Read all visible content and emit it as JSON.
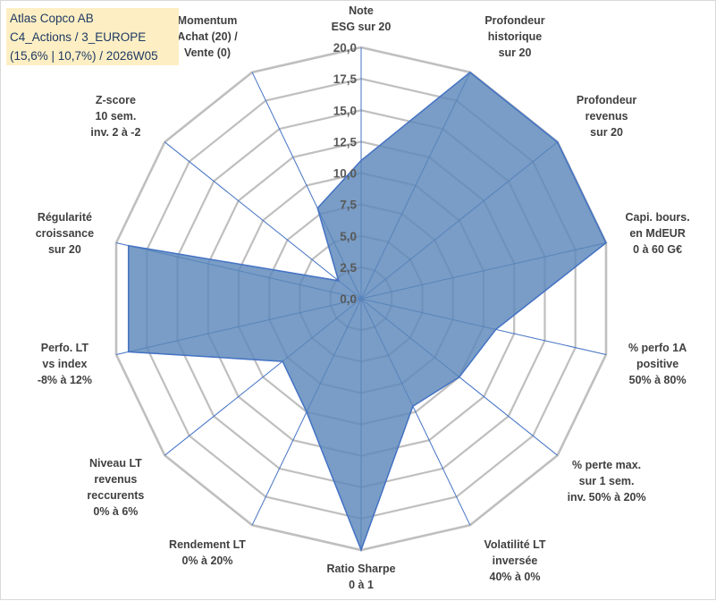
{
  "info": {
    "company": "Atlas Copco AB",
    "portfolio": "C4_Actions / 3_EUROPE",
    "stats": "(15,6% | 10,7%) / 2026W05"
  },
  "colors": {
    "fill": "#5b87b9",
    "stroke": "#4472c4",
    "grid": "#bfbfbf",
    "spoke": "#4472c4",
    "info_bg": "#fdefc3"
  },
  "chart_data": {
    "type": "radar",
    "title": "Atlas Copco AB",
    "rmin": 0,
    "rmax": 20,
    "tick_labels": [
      "0,0",
      "2,5",
      "5,0",
      "7,5",
      "10,0",
      "12,5",
      "15,0",
      "17,5",
      "20,0"
    ],
    "tick_values": [
      0,
      2.5,
      5,
      7.5,
      10,
      12.5,
      15,
      17.5,
      20
    ],
    "axes": [
      {
        "label": [
          "Note",
          "ESG sur 20"
        ],
        "value": 11.0
      },
      {
        "label": [
          "Profondeur",
          "historique",
          "sur 20"
        ],
        "value": 20.0
      },
      {
        "label": [
          "Profondeur",
          "revenus",
          "sur 20"
        ],
        "value": 20.0
      },
      {
        "label": [
          "Capi. bours.",
          "en MdEUR",
          "0 à 60 G€"
        ],
        "value": 20.0
      },
      {
        "label": [
          "% perfo 1A",
          "positive",
          "50% à 80%"
        ],
        "value": 11.0
      },
      {
        "label": [
          "% perte max.",
          "sur 1 sem.",
          "inv. 50% à 20%"
        ],
        "value": 10.0
      },
      {
        "label": [
          "Volatilité LT",
          "inversée",
          "40% à 0%"
        ],
        "value": 9.5
      },
      {
        "label": [
          "Ratio Sharpe",
          "0 à 1"
        ],
        "value": 20.0
      },
      {
        "label": [
          "Rendement LT",
          "0% à 20%"
        ],
        "value": 10.0
      },
      {
        "label": [
          "Niveau LT",
          "revenus",
          "reccurents",
          "0% à 6%"
        ],
        "value": 8.0
      },
      {
        "label": [
          "Perfo. LT",
          "vs index",
          "-8% à 12%"
        ],
        "value": 19.0
      },
      {
        "label": [
          "Régularité",
          "croissance",
          "sur 20"
        ],
        "value": 19.0
      },
      {
        "label": [
          "Z-score",
          "10 sem.",
          "inv. 2 à -2"
        ],
        "value": 2.3
      },
      {
        "label": [
          "Momentum",
          "Achat (20) /",
          "Vente (0)"
        ],
        "value": 8.0
      }
    ]
  }
}
